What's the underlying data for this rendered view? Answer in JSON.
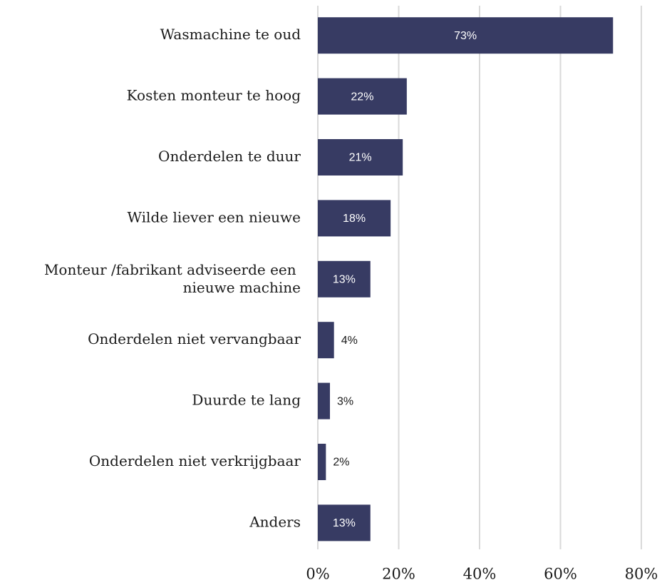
{
  "chart_data": {
    "type": "barh",
    "categories": [
      "Wasmachine te oud",
      "Kosten monteur te hoog",
      "Onderdelen te duur",
      "Wilde liever een nieuwe",
      "Monteur /fabrikant adviseerde een nieuwe machine",
      "Onderdelen niet vervangbaar",
      "Duurde te lang",
      "Onderdelen niet verkrijgbaar",
      "Anders"
    ],
    "values": [
      73,
      22,
      21,
      18,
      13,
      4,
      3,
      2,
      13
    ],
    "value_labels": [
      "73%",
      "22%",
      "21%",
      "18%",
      "13%",
      "4%",
      "3%",
      "2%",
      "13%"
    ],
    "color": "#373b63",
    "xlim": [
      0,
      80
    ],
    "xticks": [
      {
        "value": 0,
        "label": "0%"
      },
      {
        "value": 20,
        "label": "20%"
      },
      {
        "value": 40,
        "label": "40%"
      },
      {
        "value": 60,
        "label": "60%"
      },
      {
        "value": 80,
        "label": "80%"
      }
    ],
    "grid": true
  }
}
